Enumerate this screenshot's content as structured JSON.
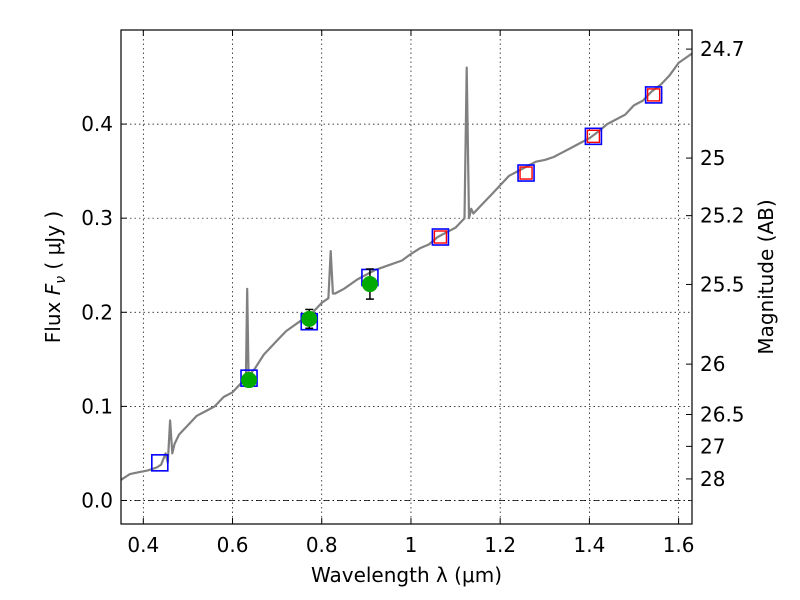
{
  "chart_data": {
    "type": "line",
    "title": "",
    "xlabel": "Wavelength  λ (μm)",
    "ylabel_parts": [
      "Flux ",
      "F",
      "ν",
      " ( μJy )"
    ],
    "y2label": "Magnitude (AB)",
    "xlim": [
      0.35,
      1.63
    ],
    "ylim": [
      -0.025,
      0.5
    ],
    "grid": true,
    "x_ticks": [
      0.4,
      0.6,
      0.8,
      1.0,
      1.2,
      1.4,
      1.6
    ],
    "x_tick_labels": [
      "0.4",
      "0.6",
      "0.8",
      "1",
      "1.2",
      "1.4",
      "1.6"
    ],
    "y_ticks": [
      0.0,
      0.1,
      0.2,
      0.3,
      0.4
    ],
    "y_tick_labels": [
      "0.0",
      "0.1",
      "0.2",
      "0.3",
      "0.4"
    ],
    "y2_ticks": [
      {
        "label": "24.7",
        "flux": 0.4797
      },
      {
        "label": "25",
        "flux": 0.3639
      },
      {
        "label": "25.2",
        "flux": 0.3027
      },
      {
        "label": "25.5",
        "flux": 0.2296
      },
      {
        "label": "26",
        "flux": 0.1449
      },
      {
        "label": "26.5",
        "flux": 0.0914
      },
      {
        "label": "27",
        "flux": 0.0575
      },
      {
        "label": "28",
        "flux": 0.0229
      }
    ],
    "zero_line": 0.0,
    "series": [
      {
        "kind": "spectrum",
        "color": "#808080",
        "x": [
          0.35,
          0.37,
          0.39,
          0.41,
          0.43,
          0.44,
          0.45,
          0.455,
          0.46,
          0.465,
          0.47,
          0.48,
          0.5,
          0.52,
          0.54,
          0.56,
          0.58,
          0.6,
          0.62,
          0.63,
          0.633,
          0.636,
          0.64,
          0.65,
          0.67,
          0.7,
          0.72,
          0.75,
          0.78,
          0.8,
          0.815,
          0.82,
          0.825,
          0.83,
          0.85,
          0.88,
          0.9,
          0.92,
          0.95,
          0.98,
          1.0,
          1.02,
          1.04,
          1.06,
          1.08,
          1.1,
          1.12,
          1.125,
          1.13,
          1.135,
          1.14,
          1.16,
          1.18,
          1.2,
          1.22,
          1.24,
          1.26,
          1.28,
          1.3,
          1.32,
          1.34,
          1.36,
          1.38,
          1.4,
          1.42,
          1.44,
          1.46,
          1.48,
          1.5,
          1.52,
          1.54,
          1.56,
          1.58,
          1.6,
          1.63
        ],
        "y": [
          0.022,
          0.028,
          0.03,
          0.032,
          0.035,
          0.038,
          0.05,
          0.04,
          0.085,
          0.05,
          0.06,
          0.07,
          0.08,
          0.09,
          0.095,
          0.1,
          0.11,
          0.115,
          0.125,
          0.13,
          0.225,
          0.13,
          0.135,
          0.14,
          0.155,
          0.17,
          0.18,
          0.19,
          0.2,
          0.21,
          0.215,
          0.265,
          0.22,
          0.22,
          0.225,
          0.235,
          0.24,
          0.245,
          0.25,
          0.255,
          0.262,
          0.268,
          0.272,
          0.28,
          0.285,
          0.29,
          0.3,
          0.46,
          0.3,
          0.31,
          0.305,
          0.315,
          0.325,
          0.335,
          0.345,
          0.35,
          0.355,
          0.36,
          0.362,
          0.365,
          0.37,
          0.375,
          0.38,
          0.385,
          0.392,
          0.4,
          0.405,
          0.41,
          0.42,
          0.425,
          0.435,
          0.442,
          0.452,
          0.465,
          0.475
        ]
      },
      {
        "kind": "model_squares_blue",
        "color": "#0000ff",
        "x": [
          0.437,
          0.637,
          0.772,
          0.908,
          1.066,
          1.258,
          1.409,
          1.544
        ],
        "y": [
          0.04,
          0.13,
          0.19,
          0.237,
          0.28,
          0.348,
          0.387,
          0.431
        ]
      },
      {
        "kind": "model_squares_red",
        "color": "#ff0000",
        "x": [
          1.066,
          1.258,
          1.409,
          1.544
        ],
        "y": [
          0.28,
          0.348,
          0.387,
          0.431
        ]
      },
      {
        "kind": "observed_points",
        "color": "#00aa00",
        "x": [
          0.637,
          0.772,
          0.908
        ],
        "y": [
          0.128,
          0.193,
          0.23
        ],
        "yerr": [
          0.007,
          0.01,
          0.016
        ]
      }
    ]
  }
}
